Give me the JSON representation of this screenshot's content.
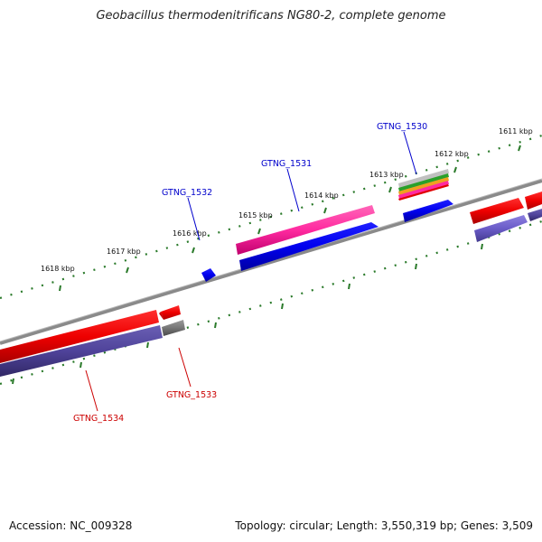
{
  "title": "Geobacillus thermodenitrificans NG80-2, complete genome",
  "footer": {
    "accession": "Accession: NC_009328",
    "summary": "Topology: circular; Length: 3,550,319 bp; Genes: 3,509"
  },
  "ticks": [
    "1611 kbp",
    "1612 kbp",
    "1613 kbp",
    "1614 kbp",
    "1615 kbp",
    "1616 kbp",
    "1617 kbp",
    "1618 kbp"
  ],
  "genes": {
    "gtng_1530": "GTNG_1530",
    "gtng_1531": "GTNG_1531",
    "gtng_1532": "GTNG_1532",
    "gtng_1533": "GTNG_1533",
    "gtng_1534": "GTNG_1534"
  },
  "colors": {
    "forward_label": "#0000cc",
    "reverse_label": "#cc0000",
    "tick_green": "#2a7a2a",
    "backbone": "#888888"
  }
}
